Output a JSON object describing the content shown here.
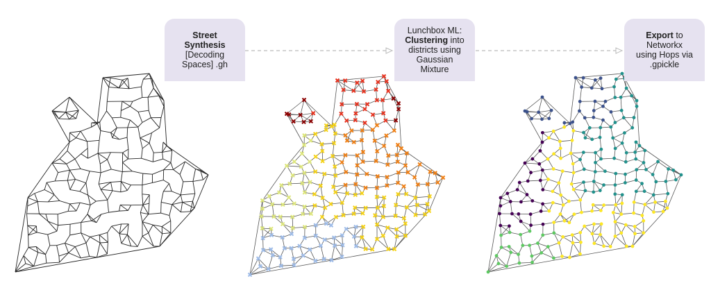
{
  "steps": [
    {
      "lines": [
        {
          "bold": "Street",
          "rest": ""
        },
        {
          "bold": "Synthesis",
          "rest": ""
        },
        {
          "bold": "",
          "rest": "[Decoding"
        },
        {
          "bold": "",
          "rest": "Spaces] .gh"
        }
      ]
    },
    {
      "lines": [
        {
          "bold": "",
          "rest": "Lunchbox ML:"
        },
        {
          "bold": "Clustering",
          "rest": " into"
        },
        {
          "bold": "",
          "rest": "districts using"
        },
        {
          "bold": "",
          "rest": "Gaussian"
        },
        {
          "bold": "",
          "rest": "Mixture"
        }
      ]
    },
    {
      "lines": [
        {
          "bold": "Export",
          "rest": " to"
        },
        {
          "bold": "",
          "rest": "Networkx"
        },
        {
          "bold": "",
          "rest": "using Hops via"
        },
        {
          "bold": "",
          "rest": ".gpickle"
        }
      ]
    }
  ],
  "colors": {
    "box": "#e6e2f0",
    "arrow": "#bbbbbb",
    "street": "#222222",
    "clusters_plot2": [
      "#8b0000",
      "#e8321e",
      "#f07f13",
      "#f5d215",
      "#dde67a",
      "#9dbbe8"
    ],
    "clusters_plot3": [
      "#3b518b",
      "#21918c",
      "#440154",
      "#fde725",
      "#5ec962"
    ]
  }
}
